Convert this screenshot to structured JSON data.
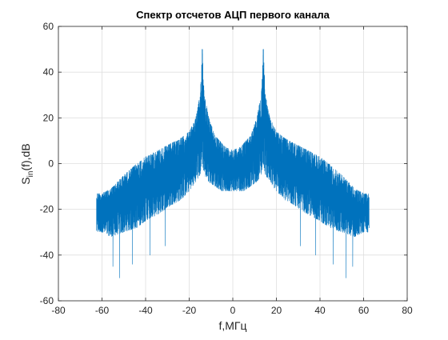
{
  "chart_data": {
    "type": "line",
    "title": "Спектр отсчетов АЦП первого канала",
    "xlabel": "f,МГц",
    "ylabel": "S_in(f),dB",
    "ylabel_parts": {
      "main": "S",
      "sub": "in",
      "rest": "(f),dB"
    },
    "xlim": [
      -80,
      80
    ],
    "ylim": [
      -60,
      60
    ],
    "xticks": [
      -80,
      -60,
      -40,
      -20,
      0,
      20,
      40,
      60,
      80
    ],
    "yticks": [
      -60,
      -40,
      -20,
      0,
      20,
      40,
      60
    ],
    "grid": true,
    "legend": "none",
    "line_color": "#0072bd",
    "series": [
      {
        "x_range": [
          -62.5,
          62.5
        ],
        "peaks": [
          {
            "x": -14,
            "y": 50
          },
          {
            "x": 14,
            "y": 50
          }
        ],
        "envelope": {
          "x": [
            -62.5,
            -60,
            -56,
            -50,
            -44,
            -40,
            -34,
            -28,
            -24,
            -20,
            -17,
            -15,
            -14,
            -13,
            -11,
            -8,
            -5,
            -3,
            0,
            3,
            5,
            8,
            11,
            13,
            14,
            15,
            17,
            20,
            24,
            28,
            34,
            40,
            44,
            50,
            56,
            60,
            62.5
          ],
          "upper": [
            -13,
            -13,
            -11,
            -5,
            0,
            3,
            6,
            9,
            11,
            14,
            20,
            30,
            50,
            30,
            20,
            12,
            9,
            7,
            6,
            7,
            9,
            12,
            20,
            30,
            50,
            30,
            20,
            14,
            11,
            9,
            6,
            3,
            0,
            -5,
            -11,
            -13,
            -13
          ],
          "lower": [
            -30,
            -30,
            -32,
            -30,
            -28,
            -25,
            -22,
            -18,
            -16,
            -12,
            -8,
            -5,
            0,
            -5,
            -8,
            -10,
            -12,
            -12,
            -12,
            -12,
            -12,
            -10,
            -8,
            -5,
            0,
            -5,
            -8,
            -12,
            -16,
            -18,
            -22,
            -25,
            -28,
            -30,
            -32,
            -30,
            -30
          ],
          "dips": [
            {
              "x": -55,
              "y": -45
            },
            {
              "x": -52,
              "y": -50
            },
            {
              "x": -46,
              "y": -44
            },
            {
              "x": -38,
              "y": -40
            },
            {
              "x": -31,
              "y": -36
            },
            {
              "x": 31,
              "y": -36
            },
            {
              "x": 38,
              "y": -40
            },
            {
              "x": 46,
              "y": -44
            },
            {
              "x": 52,
              "y": -50
            },
            {
              "x": 55,
              "y": -45
            }
          ]
        }
      }
    ]
  }
}
